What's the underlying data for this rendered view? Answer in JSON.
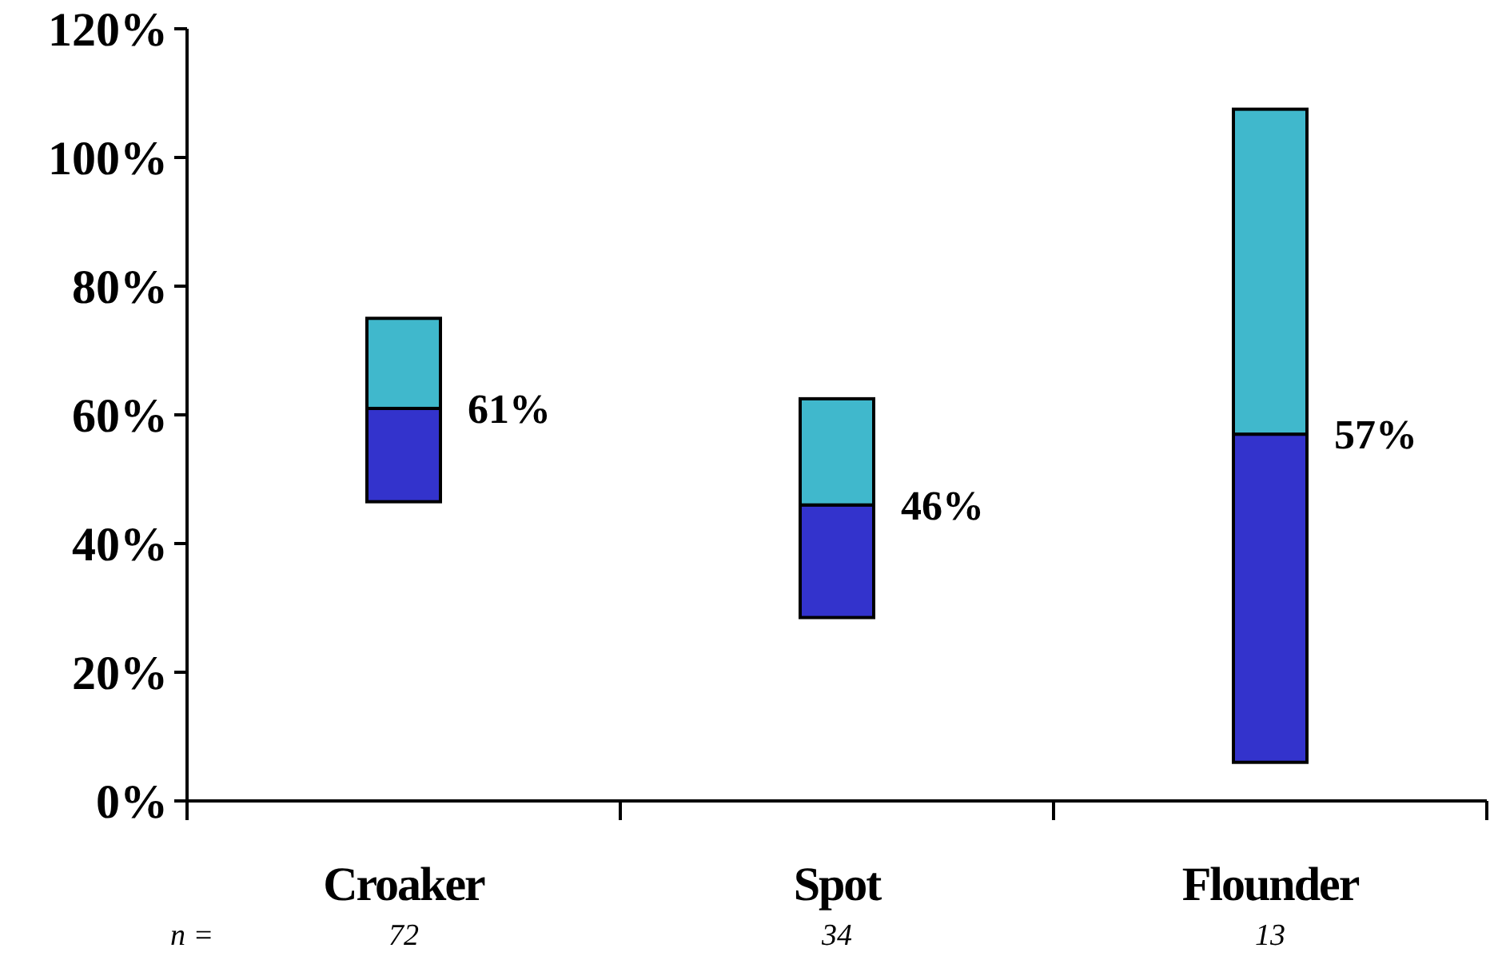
{
  "chart_data": {
    "type": "bar",
    "categories": [
      "Croaker",
      "Spot",
      "Flounder"
    ],
    "series": [
      {
        "color": "#3333cc",
        "base": [
          46.5,
          28.5,
          6
        ],
        "values": [
          14.5,
          17.5,
          51
        ]
      },
      {
        "color": "#40b8cc",
        "base": [
          61,
          46,
          57
        ],
        "values": [
          14,
          16.5,
          50.5
        ]
      }
    ],
    "ylim": [
      0,
      120
    ],
    "yticks": [
      {
        "value": 0,
        "label": "0%"
      },
      {
        "value": 20,
        "label": "20%"
      },
      {
        "value": 40,
        "label": "40%"
      },
      {
        "value": 60,
        "label": "60%"
      },
      {
        "value": 80,
        "label": "80%"
      },
      {
        "value": 100,
        "label": "100%"
      },
      {
        "value": 120,
        "label": "120%"
      }
    ],
    "annotations": [
      {
        "text": "61%",
        "x": "Croaker",
        "y": 61
      },
      {
        "text": "46%",
        "x": "Spot",
        "y": 46
      },
      {
        "text": "57%",
        "x": "Flounder",
        "y": 57
      },
      "n =",
      "72",
      "34",
      "13"
    ],
    "grid": false
  }
}
